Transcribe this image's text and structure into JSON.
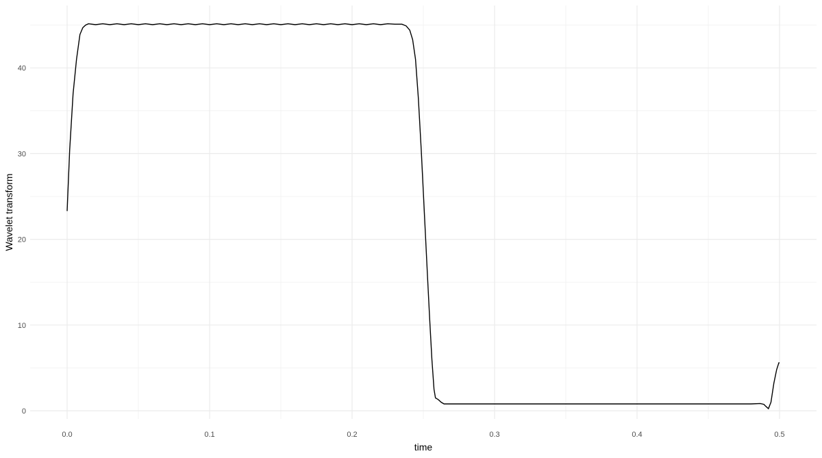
{
  "chart_data": {
    "type": "line",
    "title": "",
    "xlabel": "time",
    "ylabel": "Wavelet transform",
    "xlim": [
      -0.025,
      0.525
    ],
    "ylim": [
      -0.9,
      47.3
    ],
    "x_ticks": [
      "0.0",
      "0.1",
      "0.2",
      "0.3",
      "0.4",
      "0.5"
    ],
    "x_tick_values": [
      0,
      0.1,
      0.2,
      0.3,
      0.4,
      0.5
    ],
    "y_ticks": [
      "0",
      "10",
      "20",
      "30",
      "40"
    ],
    "y_tick_values": [
      0,
      10,
      20,
      30,
      40
    ],
    "grid": true,
    "line_color": "#000000",
    "series": [
      {
        "x": [
          0,
          0.0018,
          0.0042,
          0.0066,
          0.009,
          0.011,
          0.013,
          0.015,
          0.02,
          0.025,
          0.03,
          0.035,
          0.04,
          0.045,
          0.05,
          0.055,
          0.06,
          0.065,
          0.07,
          0.075,
          0.08,
          0.085,
          0.09,
          0.095,
          0.1,
          0.105,
          0.11,
          0.115,
          0.12,
          0.125,
          0.13,
          0.135,
          0.14,
          0.145,
          0.15,
          0.155,
          0.16,
          0.165,
          0.17,
          0.175,
          0.18,
          0.185,
          0.19,
          0.195,
          0.2,
          0.205,
          0.21,
          0.215,
          0.22,
          0.225,
          0.23,
          0.235,
          0.238,
          0.2405,
          0.2425,
          0.2445,
          0.2465,
          0.2485,
          0.25,
          0.2515,
          0.253,
          0.2545,
          0.256,
          0.2575,
          0.2585,
          0.2605,
          0.2625,
          0.2645,
          0.27,
          0.3,
          0.35,
          0.4,
          0.45,
          0.48,
          0.4865,
          0.489,
          0.4905,
          0.4922,
          0.494,
          0.496,
          0.498,
          0.4995,
          0.5
        ],
        "y": [
          23.3,
          30.4,
          37.0,
          41.0,
          43.9,
          44.7,
          45.0,
          45.15,
          45.05,
          45.15,
          45.05,
          45.15,
          45.05,
          45.15,
          45.05,
          45.15,
          45.05,
          45.15,
          45.05,
          45.15,
          45.05,
          45.15,
          45.05,
          45.15,
          45.05,
          45.15,
          45.05,
          45.15,
          45.05,
          45.15,
          45.05,
          45.15,
          45.05,
          45.15,
          45.05,
          45.15,
          45.05,
          45.15,
          45.05,
          45.15,
          45.05,
          45.15,
          45.05,
          45.15,
          45.05,
          45.15,
          45.05,
          45.15,
          45.05,
          45.15,
          45.1,
          45.1,
          44.9,
          44.4,
          43.3,
          41.0,
          36.5,
          30.5,
          25.5,
          20.5,
          15.5,
          10.5,
          6.0,
          2.5,
          1.5,
          1.3,
          1.0,
          0.8,
          0.8,
          0.8,
          0.8,
          0.8,
          0.8,
          0.8,
          0.85,
          0.75,
          0.5,
          0.25,
          1.0,
          3.2,
          4.8,
          5.6,
          5.6
        ]
      }
    ]
  }
}
